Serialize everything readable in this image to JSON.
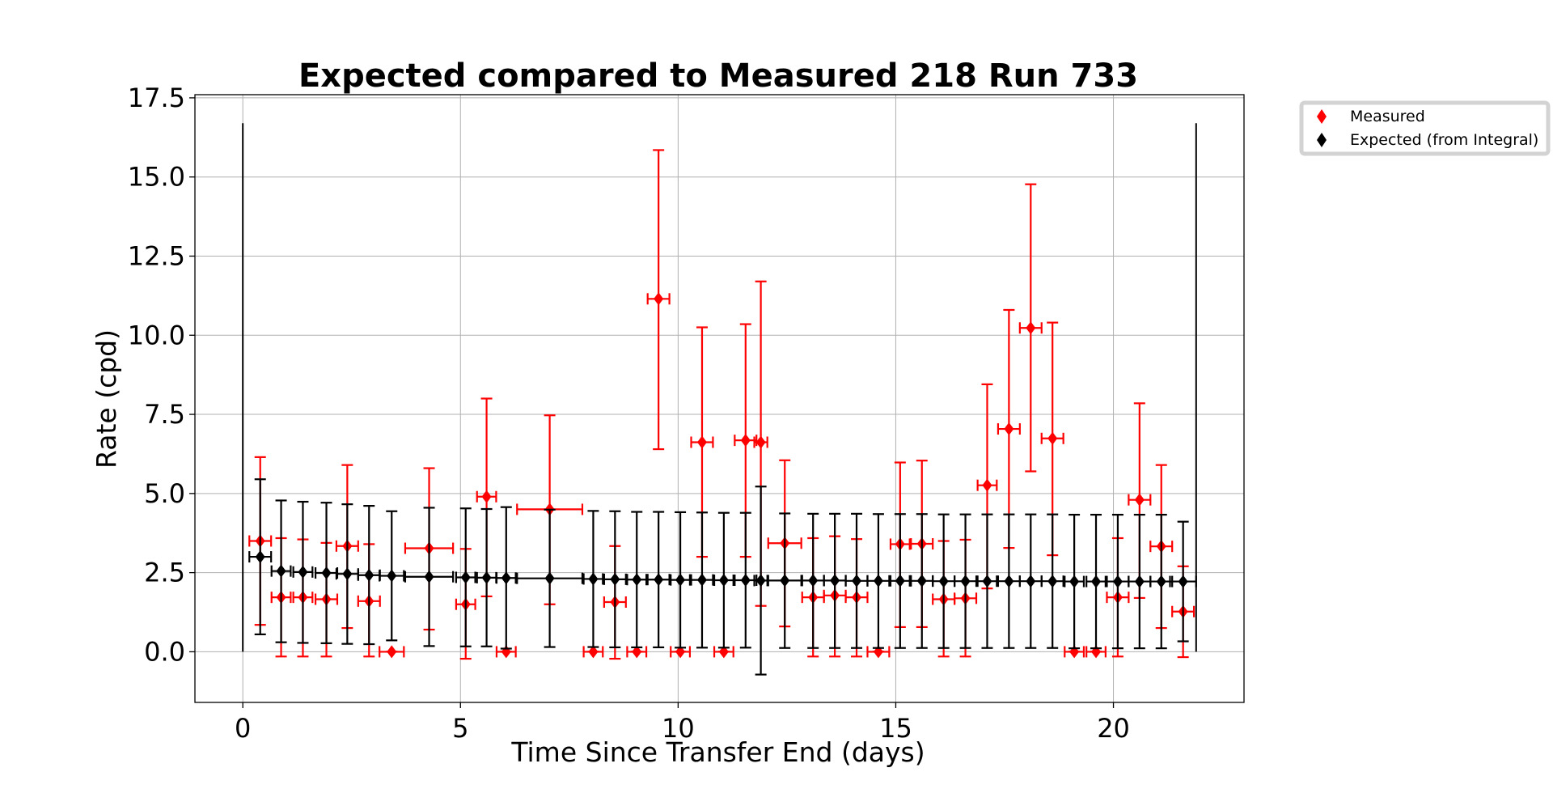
{
  "chart_data": {
    "type": "scatter",
    "title": "Expected compared to Measured 218 Run 733",
    "xlabel": "Time Since Transfer End (days)",
    "ylabel": "Rate (cpd)",
    "xlim": [
      -1.1,
      23.0
    ],
    "ylim": [
      -1.6,
      17.6
    ],
    "xticks": [
      0,
      5,
      10,
      15,
      20
    ],
    "yticks": [
      0.0,
      2.5,
      5.0,
      7.5,
      10.0,
      12.5,
      15.0,
      17.5
    ],
    "xtick_labels": [
      "0",
      "5",
      "10",
      "15",
      "20"
    ],
    "ytick_labels": [
      "0.0",
      "2.5",
      "5.0",
      "7.5",
      "10.0",
      "12.5",
      "15.0",
      "17.5"
    ],
    "grid": true,
    "legend_position": "outside top-right",
    "vertical_lines": [
      {
        "x": 0.0,
        "y_from": 0.0,
        "y_to": 16.7,
        "color": "#000000"
      },
      {
        "x": 21.9,
        "y_from": 0.0,
        "y_to": 16.7,
        "color": "#000000"
      }
    ],
    "series": [
      {
        "name": "Measured",
        "color": "#ff0000",
        "marker": "thin_diamond",
        "points": [
          {
            "x": 0.4,
            "y": 3.5,
            "xerr": 0.25,
            "ylo": 0.85,
            "yhi": 6.15
          },
          {
            "x": 0.88,
            "y": 1.72,
            "xerr": 0.22,
            "ylo": -0.15,
            "yhi": 3.59
          },
          {
            "x": 1.38,
            "y": 1.72,
            "xerr": 0.22,
            "ylo": -0.15,
            "yhi": 3.55
          },
          {
            "x": 1.92,
            "y": 1.66,
            "xerr": 0.25,
            "ylo": -0.15,
            "yhi": 3.44
          },
          {
            "x": 2.4,
            "y": 3.34,
            "xerr": 0.25,
            "ylo": 0.75,
            "yhi": 5.9
          },
          {
            "x": 2.9,
            "y": 1.6,
            "xerr": 0.25,
            "ylo": -0.15,
            "yhi": 3.4
          },
          {
            "x": 3.42,
            "y": 0.0,
            "xerr": 0.28,
            "ylo": 0.0,
            "yhi": 0.0
          },
          {
            "x": 4.28,
            "y": 3.27,
            "xerr": 0.55,
            "ylo": 0.7,
            "yhi": 5.8
          },
          {
            "x": 5.12,
            "y": 1.5,
            "xerr": 0.22,
            "ylo": -0.22,
            "yhi": 3.25
          },
          {
            "x": 5.6,
            "y": 4.9,
            "xerr": 0.22,
            "ylo": 1.75,
            "yhi": 8.0
          },
          {
            "x": 6.05,
            "y": 0.0,
            "xerr": 0.22,
            "ylo": 0.0,
            "yhi": 0.0
          },
          {
            "x": 7.05,
            "y": 4.5,
            "xerr": 0.75,
            "ylo": 1.5,
            "yhi": 7.47
          },
          {
            "x": 8.05,
            "y": 0.0,
            "xerr": 0.22,
            "ylo": 0.0,
            "yhi": 0.0
          },
          {
            "x": 8.55,
            "y": 1.57,
            "xerr": 0.25,
            "ylo": -0.22,
            "yhi": 3.34
          },
          {
            "x": 9.05,
            "y": 0.0,
            "xerr": 0.22,
            "ylo": 0.0,
            "yhi": 0.0
          },
          {
            "x": 9.55,
            "y": 11.15,
            "xerr": 0.25,
            "ylo": 6.4,
            "yhi": 15.85
          },
          {
            "x": 10.05,
            "y": 0.0,
            "xerr": 0.22,
            "ylo": 0.0,
            "yhi": 0.0
          },
          {
            "x": 10.55,
            "y": 6.62,
            "xerr": 0.25,
            "ylo": 3.0,
            "yhi": 10.25
          },
          {
            "x": 11.05,
            "y": 0.0,
            "xerr": 0.22,
            "ylo": 0.0,
            "yhi": 0.0
          },
          {
            "x": 11.55,
            "y": 6.68,
            "xerr": 0.25,
            "ylo": 3.0,
            "yhi": 10.35
          },
          {
            "x": 11.9,
            "y": 6.62,
            "xerr": 0.15,
            "ylo": 1.45,
            "yhi": 11.7
          },
          {
            "x": 12.45,
            "y": 3.43,
            "xerr": 0.38,
            "ylo": 0.8,
            "yhi": 6.05
          },
          {
            "x": 13.1,
            "y": 1.72,
            "xerr": 0.25,
            "ylo": -0.15,
            "yhi": 3.59
          },
          {
            "x": 13.6,
            "y": 1.78,
            "xerr": 0.25,
            "ylo": -0.15,
            "yhi": 3.65
          },
          {
            "x": 14.1,
            "y": 1.72,
            "xerr": 0.25,
            "ylo": -0.15,
            "yhi": 3.56
          },
          {
            "x": 14.6,
            "y": 0.0,
            "xerr": 0.25,
            "ylo": 0.0,
            "yhi": 0.0
          },
          {
            "x": 15.1,
            "y": 3.4,
            "xerr": 0.22,
            "ylo": 0.78,
            "yhi": 5.98
          },
          {
            "x": 15.6,
            "y": 3.41,
            "xerr": 0.25,
            "ylo": 0.78,
            "yhi": 6.04
          },
          {
            "x": 16.1,
            "y": 1.66,
            "xerr": 0.25,
            "ylo": -0.15,
            "yhi": 3.5
          },
          {
            "x": 16.6,
            "y": 1.69,
            "xerr": 0.25,
            "ylo": -0.15,
            "yhi": 3.54
          },
          {
            "x": 17.1,
            "y": 5.26,
            "xerr": 0.22,
            "ylo": 2.0,
            "yhi": 8.45
          },
          {
            "x": 17.6,
            "y": 7.04,
            "xerr": 0.25,
            "ylo": 3.28,
            "yhi": 10.8
          },
          {
            "x": 18.1,
            "y": 10.23,
            "xerr": 0.25,
            "ylo": 5.7,
            "yhi": 14.77
          },
          {
            "x": 18.6,
            "y": 6.74,
            "xerr": 0.25,
            "ylo": 3.05,
            "yhi": 10.4
          },
          {
            "x": 19.1,
            "y": 0.0,
            "xerr": 0.22,
            "ylo": 0.0,
            "yhi": 0.0
          },
          {
            "x": 19.6,
            "y": 0.0,
            "xerr": 0.22,
            "ylo": 0.0,
            "yhi": 0.0
          },
          {
            "x": 20.1,
            "y": 1.72,
            "xerr": 0.25,
            "ylo": -0.15,
            "yhi": 3.59
          },
          {
            "x": 20.6,
            "y": 4.8,
            "xerr": 0.25,
            "ylo": 1.7,
            "yhi": 7.85
          },
          {
            "x": 21.1,
            "y": 3.33,
            "xerr": 0.25,
            "ylo": 0.75,
            "yhi": 5.9
          },
          {
            "x": 21.6,
            "y": 1.27,
            "xerr": 0.25,
            "ylo": -0.17,
            "yhi": 2.7
          }
        ]
      },
      {
        "name": "Expected (from Integral)",
        "color": "#000000",
        "marker": "thin_diamond",
        "points": [
          {
            "x": 0.4,
            "y": 3.0,
            "xerr": 0.25,
            "ylo": 0.55,
            "yhi": 5.45
          },
          {
            "x": 0.88,
            "y": 2.55,
            "xerr": 0.22,
            "ylo": 0.3,
            "yhi": 4.78
          },
          {
            "x": 1.38,
            "y": 2.52,
            "xerr": 0.22,
            "ylo": 0.28,
            "yhi": 4.74
          },
          {
            "x": 1.92,
            "y": 2.49,
            "xerr": 0.25,
            "ylo": 0.27,
            "yhi": 4.71
          },
          {
            "x": 2.4,
            "y": 2.46,
            "xerr": 0.25,
            "ylo": 0.25,
            "yhi": 4.66
          },
          {
            "x": 2.9,
            "y": 2.42,
            "xerr": 0.25,
            "ylo": 0.24,
            "yhi": 4.61
          },
          {
            "x": 3.42,
            "y": 2.4,
            "xerr": 0.28,
            "ylo": 0.36,
            "yhi": 4.44
          },
          {
            "x": 4.28,
            "y": 2.37,
            "xerr": 0.55,
            "ylo": 0.18,
            "yhi": 4.55
          },
          {
            "x": 5.12,
            "y": 2.35,
            "xerr": 0.22,
            "ylo": 0.17,
            "yhi": 4.53
          },
          {
            "x": 5.6,
            "y": 2.34,
            "xerr": 0.22,
            "ylo": 0.17,
            "yhi": 4.51
          },
          {
            "x": 6.05,
            "y": 2.33,
            "xerr": 0.22,
            "ylo": 0.1,
            "yhi": 4.57
          },
          {
            "x": 7.05,
            "y": 2.32,
            "xerr": 0.75,
            "ylo": 0.15,
            "yhi": 4.49
          },
          {
            "x": 8.05,
            "y": 2.3,
            "xerr": 0.22,
            "ylo": 0.15,
            "yhi": 4.45
          },
          {
            "x": 8.55,
            "y": 2.29,
            "xerr": 0.25,
            "ylo": 0.14,
            "yhi": 4.44
          },
          {
            "x": 9.05,
            "y": 2.28,
            "xerr": 0.22,
            "ylo": 0.14,
            "yhi": 4.42
          },
          {
            "x": 9.55,
            "y": 2.28,
            "xerr": 0.25,
            "ylo": 0.14,
            "yhi": 4.42
          },
          {
            "x": 10.05,
            "y": 2.27,
            "xerr": 0.22,
            "ylo": 0.13,
            "yhi": 4.41
          },
          {
            "x": 10.55,
            "y": 2.27,
            "xerr": 0.25,
            "ylo": 0.13,
            "yhi": 4.4
          },
          {
            "x": 11.05,
            "y": 2.26,
            "xerr": 0.22,
            "ylo": 0.13,
            "yhi": 4.39
          },
          {
            "x": 11.55,
            "y": 2.26,
            "xerr": 0.25,
            "ylo": 0.13,
            "yhi": 4.39
          },
          {
            "x": 11.9,
            "y": 2.25,
            "xerr": 0.15,
            "ylo": -0.72,
            "yhi": 5.22
          },
          {
            "x": 12.45,
            "y": 2.25,
            "xerr": 0.38,
            "ylo": 0.12,
            "yhi": 4.37
          },
          {
            "x": 13.1,
            "y": 2.25,
            "xerr": 0.25,
            "ylo": 0.12,
            "yhi": 4.36
          },
          {
            "x": 13.6,
            "y": 2.25,
            "xerr": 0.25,
            "ylo": 0.12,
            "yhi": 4.36
          },
          {
            "x": 14.1,
            "y": 2.24,
            "xerr": 0.25,
            "ylo": 0.12,
            "yhi": 4.36
          },
          {
            "x": 14.6,
            "y": 2.24,
            "xerr": 0.25,
            "ylo": 0.12,
            "yhi": 4.35
          },
          {
            "x": 15.1,
            "y": 2.24,
            "xerr": 0.22,
            "ylo": 0.12,
            "yhi": 4.35
          },
          {
            "x": 15.6,
            "y": 2.24,
            "xerr": 0.25,
            "ylo": 0.12,
            "yhi": 4.35
          },
          {
            "x": 16.1,
            "y": 2.23,
            "xerr": 0.25,
            "ylo": 0.12,
            "yhi": 4.34
          },
          {
            "x": 16.6,
            "y": 2.23,
            "xerr": 0.25,
            "ylo": 0.12,
            "yhi": 4.34
          },
          {
            "x": 17.1,
            "y": 2.23,
            "xerr": 0.22,
            "ylo": 0.12,
            "yhi": 4.34
          },
          {
            "x": 17.6,
            "y": 2.23,
            "xerr": 0.25,
            "ylo": 0.12,
            "yhi": 4.34
          },
          {
            "x": 18.1,
            "y": 2.23,
            "xerr": 0.25,
            "ylo": 0.12,
            "yhi": 4.34
          },
          {
            "x": 18.6,
            "y": 2.23,
            "xerr": 0.25,
            "ylo": 0.12,
            "yhi": 4.34
          },
          {
            "x": 19.1,
            "y": 2.22,
            "xerr": 0.22,
            "ylo": 0.11,
            "yhi": 4.33
          },
          {
            "x": 19.6,
            "y": 2.22,
            "xerr": 0.22,
            "ylo": 0.11,
            "yhi": 4.33
          },
          {
            "x": 20.1,
            "y": 2.22,
            "xerr": 0.25,
            "ylo": 0.11,
            "yhi": 4.33
          },
          {
            "x": 20.6,
            "y": 2.22,
            "xerr": 0.25,
            "ylo": 0.11,
            "yhi": 4.33
          },
          {
            "x": 21.1,
            "y": 2.22,
            "xerr": 0.25,
            "ylo": 0.11,
            "yhi": 4.33
          },
          {
            "x": 21.6,
            "y": 2.22,
            "xerr": 0.3,
            "ylo": 0.33,
            "yhi": 4.11
          }
        ]
      }
    ]
  }
}
